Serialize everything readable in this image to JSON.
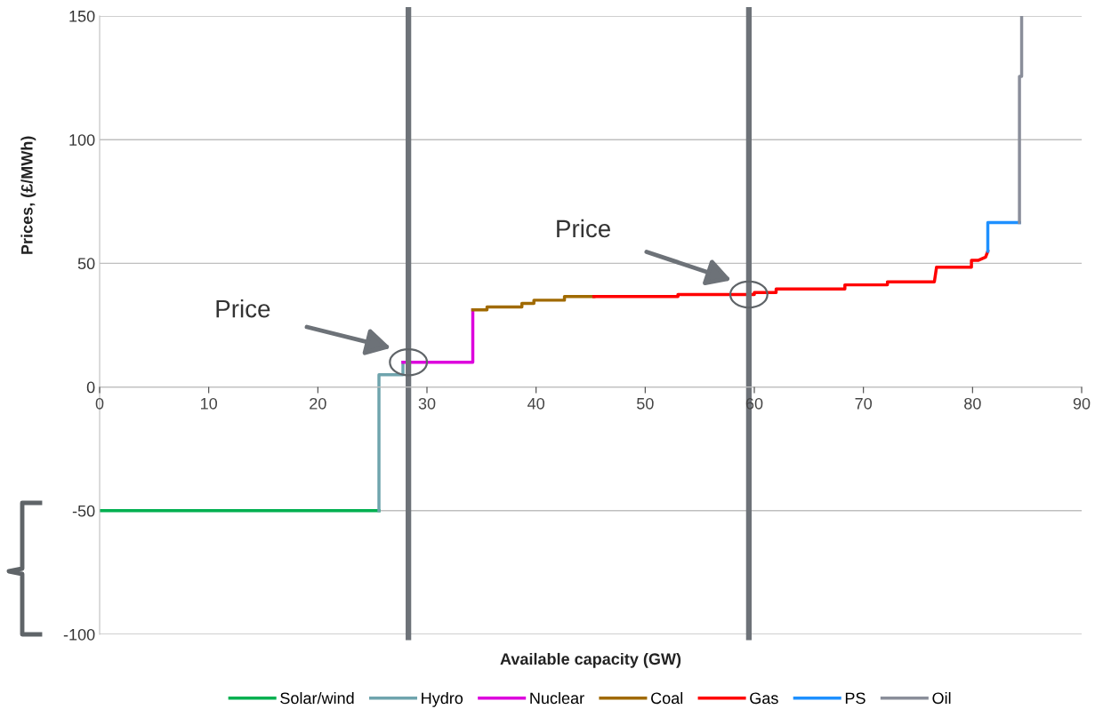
{
  "chart_data": {
    "type": "line",
    "xlabel": "Available capacity (GW)",
    "ylabel": "Prices, (£/MWh)",
    "xlim": [
      0,
      90
    ],
    "xticks": [
      0,
      10,
      20,
      30,
      40,
      50,
      60,
      70,
      80,
      90
    ],
    "ylim": [
      -100,
      150
    ],
    "yticks": [
      -100,
      -50,
      0,
      50,
      100,
      150
    ],
    "grid": "y",
    "legend": "bottom",
    "marker": "none",
    "line_style": "solid",
    "series": [
      {
        "name": "Solar/wind",
        "color": "#00b050",
        "x": [
          0,
          25.6
        ],
        "values": [
          -50,
          -50
        ]
      },
      {
        "name": "Hydro",
        "color": "#6fa4ad",
        "x": [
          25.6,
          25.6,
          27.8,
          27.8
        ],
        "values": [
          -50,
          5,
          5,
          10
        ]
      },
      {
        "name": "Nuclear",
        "color": "#dd00dd",
        "x": [
          27.8,
          34.2,
          34.2
        ],
        "values": [
          10,
          10,
          31.2
        ]
      },
      {
        "name": "Coal",
        "color": "#a06a00",
        "x": [
          34.2,
          35.5,
          35.5,
          38.7,
          38.7,
          39.8,
          39.8,
          42.6,
          42.6,
          45.3
        ],
        "values": [
          31.2,
          31.2,
          32.4,
          32.4,
          33.8,
          33.8,
          35.1,
          35.1,
          36.6,
          36.6
        ]
      },
      {
        "name": "Gas",
        "color": "#ff0000",
        "x": [
          45.3,
          53,
          53,
          60,
          60,
          62,
          62,
          68.3,
          68.3,
          72.2,
          72.2,
          76.5,
          76.7,
          79.9,
          79.9,
          80.5,
          81.2,
          81.4
        ],
        "values": [
          36.6,
          36.6,
          37.4,
          37.4,
          38.2,
          38.2,
          39.6,
          39.6,
          41.3,
          41.3,
          42.5,
          42.5,
          48.4,
          48.4,
          51.2,
          51.2,
          52.5,
          54.9
        ]
      },
      {
        "name": "PS",
        "color": "#1e90ff",
        "x": [
          81.4,
          81.4,
          84.3
        ],
        "values": [
          54.9,
          66.5,
          66.5
        ]
      },
      {
        "name": "Oil",
        "color": "#8a8e9a",
        "x": [
          84.3,
          84.3,
          84.5,
          84.5
        ],
        "values": [
          66.5,
          125.6,
          125.6,
          150
        ]
      }
    ],
    "ref_lines": [
      {
        "axis": "x",
        "value": 28.3,
        "color": "#6d7278"
      },
      {
        "axis": "x",
        "value": 59.5,
        "color": "#6d7278"
      }
    ],
    "annotations": [
      "Price",
      "Price"
    ]
  }
}
